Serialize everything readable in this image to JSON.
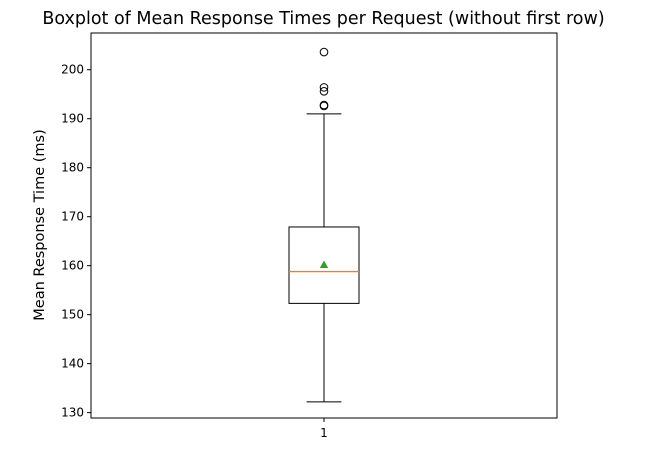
{
  "chart_data": {
    "type": "boxplot",
    "title": "Boxplot of Mean Response Times per Request (without first row)",
    "xlabel": "",
    "ylabel": "Mean Response Time (ms)",
    "categories": [
      "1"
    ],
    "ylim": [
      128.9,
      207.5
    ],
    "yticks": [
      130,
      140,
      150,
      160,
      170,
      180,
      190,
      200
    ],
    "boxes": [
      {
        "category": "1",
        "whisker_low": 132.2,
        "q1": 152.3,
        "median": 158.8,
        "q3": 167.9,
        "whisker_high": 191.0,
        "mean": 160.2,
        "outliers": [
          192.6,
          192.8,
          195.6,
          196.4,
          203.6
        ]
      }
    ],
    "grid": false,
    "legend": "none",
    "colors": {
      "box": "#000000",
      "median": "#ff7f0e",
      "mean": "#2ca02c",
      "outlier": "#000000"
    }
  }
}
